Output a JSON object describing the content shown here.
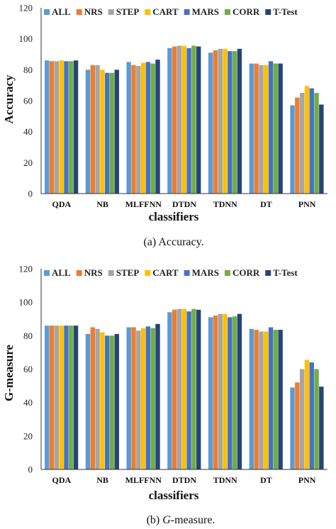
{
  "chart_data": [
    {
      "type": "bar",
      "categories": [
        "QDA",
        "NB",
        "MLFFNN",
        "DTDN",
        "TDNN",
        "DT",
        "PNN"
      ],
      "series": [
        {
          "name": "ALL",
          "color": "#5b9bd5",
          "values": [
            86,
            80,
            85,
            94,
            91,
            84,
            57
          ]
        },
        {
          "name": "NRS",
          "color": "#ed7d31",
          "values": [
            85.5,
            83,
            83,
            95,
            92.5,
            84,
            62
          ]
        },
        {
          "name": "STEP",
          "color": "#a5a5a5",
          "values": [
            85.5,
            83,
            82.5,
            95.5,
            93.5,
            83,
            65
          ]
        },
        {
          "name": "CART",
          "color": "#ffc000",
          "values": [
            86,
            80,
            84.5,
            95.5,
            93.5,
            83,
            69.5
          ]
        },
        {
          "name": "MARS",
          "color": "#4472c4",
          "values": [
            85.5,
            78,
            85,
            94,
            92,
            85.5,
            68
          ]
        },
        {
          "name": "CORR",
          "color": "#70ad47",
          "values": [
            85.5,
            78,
            84,
            95.5,
            92,
            84,
            65
          ]
        },
        {
          "name": "T-Test",
          "color": "#264478",
          "values": [
            86,
            80,
            86.5,
            95,
            93.5,
            84,
            57.5
          ]
        }
      ],
      "xlabel": "classifiers",
      "ylabel": "Accuracy",
      "ylim": [
        0,
        120
      ],
      "yticks": [
        "0",
        "20",
        "40",
        "60",
        "80",
        "100",
        "120"
      ],
      "grid": false,
      "legend": "top",
      "caption": "(a) Accuracy."
    },
    {
      "type": "bar",
      "categories": [
        "QDA",
        "NB",
        "MLFFNN",
        "DTDN",
        "TDNN",
        "DT",
        "PNN"
      ],
      "series": [
        {
          "name": "ALL",
          "color": "#5b9bd5",
          "values": [
            86,
            81,
            85,
            94,
            91,
            84,
            49
          ]
        },
        {
          "name": "NRS",
          "color": "#ed7d31",
          "values": [
            86,
            85,
            85,
            95.5,
            92,
            83.5,
            52
          ]
        },
        {
          "name": "STEP",
          "color": "#a5a5a5",
          "values": [
            86,
            84,
            83,
            96,
            93,
            82.5,
            60
          ]
        },
        {
          "name": "CART",
          "color": "#ffc000",
          "values": [
            86,
            82,
            84.5,
            96,
            93,
            82.5,
            65.5
          ]
        },
        {
          "name": "MARS",
          "color": "#4472c4",
          "values": [
            86,
            80,
            85.5,
            94.5,
            91,
            85,
            64
          ]
        },
        {
          "name": "CORR",
          "color": "#70ad47",
          "values": [
            86,
            80,
            84.5,
            96,
            91.5,
            83.5,
            60
          ]
        },
        {
          "name": "T-Test",
          "color": "#264478",
          "values": [
            86,
            81,
            87,
            95.5,
            93,
            83.5,
            49.5
          ]
        }
      ],
      "xlabel": "classifiers",
      "ylabel": "G-measure",
      "ylim": [
        0,
        120
      ],
      "yticks": [
        "0",
        "20",
        "40",
        "60",
        "80",
        "100",
        "120"
      ],
      "grid": false,
      "legend": "top",
      "caption_prefix": "(b) ",
      "caption_italic": "G",
      "caption_suffix": "-measure."
    }
  ]
}
